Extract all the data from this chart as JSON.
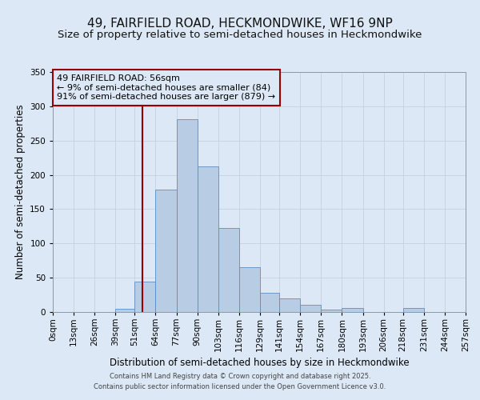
{
  "title": "49, FAIRFIELD ROAD, HECKMONDWIKE, WF16 9NP",
  "subtitle": "Size of property relative to semi-detached houses in Heckmondwike",
  "xlabel": "Distribution of semi-detached houses by size in Heckmondwike",
  "ylabel": "Number of semi-detached properties",
  "bin_labels": [
    "0sqm",
    "13sqm",
    "26sqm",
    "39sqm",
    "51sqm",
    "64sqm",
    "77sqm",
    "90sqm",
    "103sqm",
    "116sqm",
    "129sqm",
    "141sqm",
    "154sqm",
    "167sqm",
    "180sqm",
    "193sqm",
    "206sqm",
    "218sqm",
    "231sqm",
    "244sqm",
    "257sqm"
  ],
  "bin_edges": [
    0,
    13,
    26,
    39,
    51,
    64,
    77,
    90,
    103,
    116,
    129,
    141,
    154,
    167,
    180,
    193,
    206,
    218,
    231,
    244,
    257
  ],
  "bar_values": [
    0,
    0,
    0,
    5,
    44,
    178,
    281,
    212,
    122,
    65,
    28,
    20,
    11,
    3,
    6,
    0,
    0,
    6,
    0,
    0
  ],
  "bar_color": "#b8cce4",
  "bar_edgecolor": "#5b8ec4",
  "background_color": "#dce8f5",
  "vline_x": 56,
  "vline_color": "#990000",
  "annotation_text": "49 FAIRFIELD ROAD: 56sqm\n← 9% of semi-detached houses are smaller (84)\n91% of semi-detached houses are larger (879) →",
  "annotation_box_edgecolor": "#990000",
  "ylim": [
    0,
    350
  ],
  "yticks": [
    0,
    50,
    100,
    150,
    200,
    250,
    300,
    350
  ],
  "footer1": "Contains HM Land Registry data © Crown copyright and database right 2025.",
  "footer2": "Contains public sector information licensed under the Open Government Licence v3.0.",
  "title_fontsize": 11,
  "subtitle_fontsize": 9.5,
  "axis_label_fontsize": 8.5,
  "tick_fontsize": 7.5,
  "annotation_fontsize": 8
}
